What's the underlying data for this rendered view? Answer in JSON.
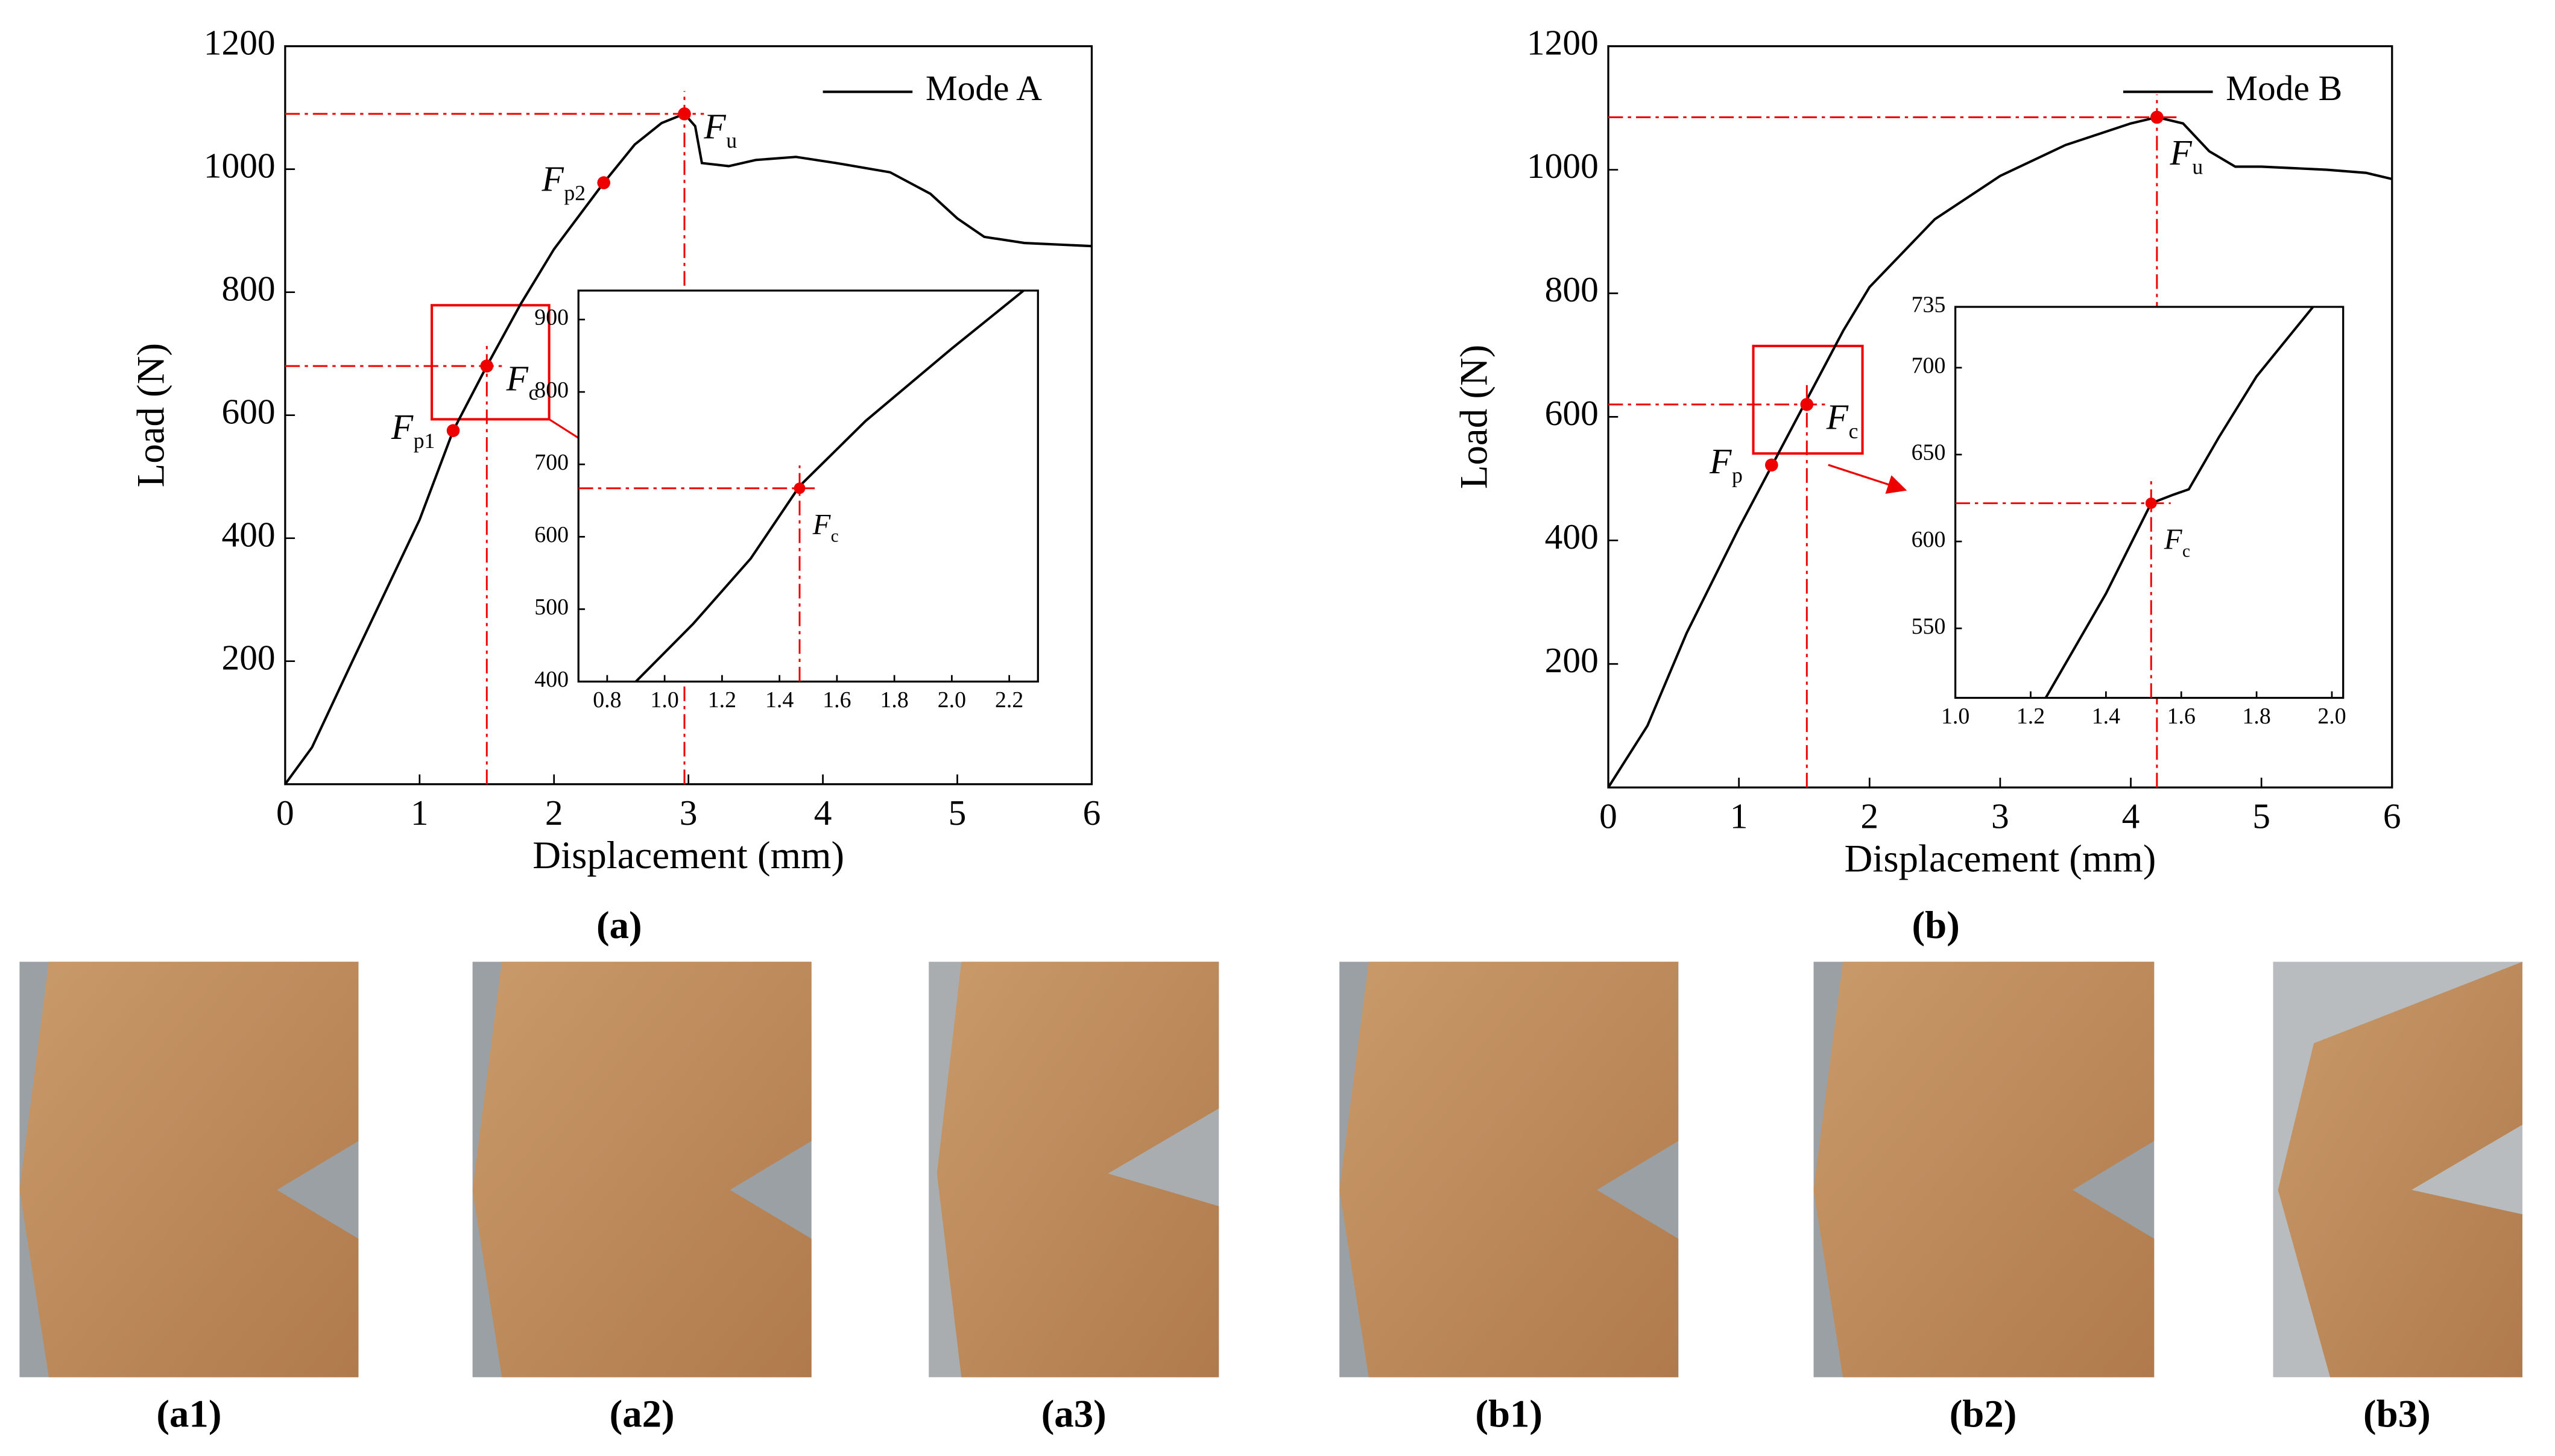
{
  "chart_data": [
    {
      "type": "line",
      "xlabel": "Displacement (mm)",
      "ylabel": "Load (N)",
      "xlim": [
        0,
        6
      ],
      "ylim": [
        0,
        1200
      ],
      "xticks": [
        0,
        1,
        2,
        3,
        4,
        5,
        6
      ],
      "yticks": [
        200,
        400,
        600,
        800,
        1000,
        1200
      ],
      "legend": "upper right",
      "series": [
        {
          "name": "Mode  A",
          "color": "#000000",
          "x": [
            0,
            0.2,
            0.5,
            1.0,
            1.25,
            1.5,
            1.75,
            2.0,
            2.37,
            2.6,
            2.8,
            2.97,
            3.05,
            3.1,
            3.3,
            3.5,
            3.8,
            4.1,
            4.5,
            4.8,
            5.0,
            5.2,
            5.5,
            6.0
          ],
          "y": [
            0,
            60,
            200,
            430,
            575,
            680,
            780,
            870,
            978,
            1040,
            1075,
            1090,
            1070,
            1010,
            1005,
            1015,
            1020,
            1010,
            995,
            960,
            920,
            890,
            880,
            875
          ]
        }
      ],
      "annotations": [
        {
          "text": "F",
          "subscript": "p1",
          "x": 1.25,
          "y": 575,
          "side": "left",
          "guide": false
        },
        {
          "text": "F",
          "subscript": "c",
          "x": 1.5,
          "y": 680,
          "side": "right",
          "guide": true
        },
        {
          "text": "F",
          "subscript": "p2",
          "x": 2.37,
          "y": 978,
          "side": "left",
          "guide": false
        },
        {
          "text": "F",
          "subscript": "u",
          "x": 2.97,
          "y": 1090,
          "side": "right",
          "guide": true
        }
      ]
    },
    {
      "type": "line",
      "xlim": [
        0.7,
        2.3
      ],
      "ylim": [
        400,
        940
      ],
      "xticks": [
        0.8,
        {
          "value": 1.0,
          "label": "1.0"
        },
        1.2,
        1.4,
        1.6,
        1.8,
        {
          "value": 2.0,
          "label": "2.0"
        },
        2.2
      ],
      "yticks": [
        400,
        500,
        600,
        700,
        800,
        900
      ],
      "series": [
        {
          "color": "#000000",
          "x": [
            0.9,
            1.1,
            1.3,
            1.47,
            1.7,
            2.0,
            2.25
          ],
          "y": [
            400,
            480,
            570,
            670,
            760,
            860,
            940
          ]
        }
      ],
      "annotations": [
        {
          "text": "F",
          "subscript": "c",
          "x": 1.47,
          "y": 667,
          "side": "below",
          "guide": true
        }
      ]
    },
    {
      "type": "line",
      "xlabel": "Displacement (mm)",
      "ylabel": "Load (N)",
      "xlim": [
        0,
        6
      ],
      "ylim": [
        0,
        1200
      ],
      "xticks": [
        0,
        1,
        2,
        3,
        4,
        5,
        6
      ],
      "yticks": [
        200,
        400,
        600,
        800,
        1000,
        1200
      ],
      "legend": "upper right",
      "series": [
        {
          "name": "Mode B",
          "color": "#000000",
          "x": [
            0,
            0.3,
            0.6,
            1.0,
            1.25,
            1.5,
            1.6,
            1.8,
            2.0,
            2.5,
            3.0,
            3.5,
            4.0,
            4.2,
            4.4,
            4.6,
            4.8,
            5.0,
            5.5,
            5.8,
            6.0
          ],
          "y": [
            0,
            100,
            250,
            420,
            520,
            620,
            660,
            740,
            810,
            920,
            990,
            1040,
            1075,
            1085,
            1075,
            1030,
            1005,
            1005,
            1000,
            995,
            985
          ]
        }
      ],
      "annotations": [
        {
          "text": "F",
          "subscript": "p",
          "x": 1.25,
          "y": 522,
          "side": "left",
          "guide": false
        },
        {
          "text": "F",
          "subscript": "c",
          "x": 1.52,
          "y": 620,
          "side": "right",
          "guide": true
        },
        {
          "text": "F",
          "subscript": "u",
          "x": 4.2,
          "y": 1085,
          "side": "below",
          "guide": true
        }
      ]
    },
    {
      "type": "line",
      "xlim": [
        1.0,
        2.03
      ],
      "ylim": [
        510,
        735
      ],
      "xticks": [
        {
          "value": 1.0,
          "label": "1.0"
        },
        1.2,
        1.4,
        1.6,
        1.8,
        {
          "value": 2.0,
          "label": "2.0"
        }
      ],
      "yticks": [
        550,
        600,
        650,
        700,
        735
      ],
      "series": [
        {
          "color": "#000000",
          "x": [
            1.24,
            1.4,
            1.52,
            1.58,
            1.62,
            1.7,
            1.8,
            1.95
          ],
          "y": [
            510,
            570,
            622,
            627,
            630,
            660,
            695,
            735
          ]
        }
      ],
      "annotations": [
        {
          "text": "F",
          "subscript": "c",
          "x": 1.52,
          "y": 622,
          "side": "below",
          "guide": true
        }
      ]
    }
  ],
  "panel_captions": [
    "(a)",
    "(b)"
  ],
  "photo_captions": [
    "(a1)",
    "(a2)",
    "(a3)",
    "(b1)",
    "(b2)",
    "(b3)"
  ]
}
